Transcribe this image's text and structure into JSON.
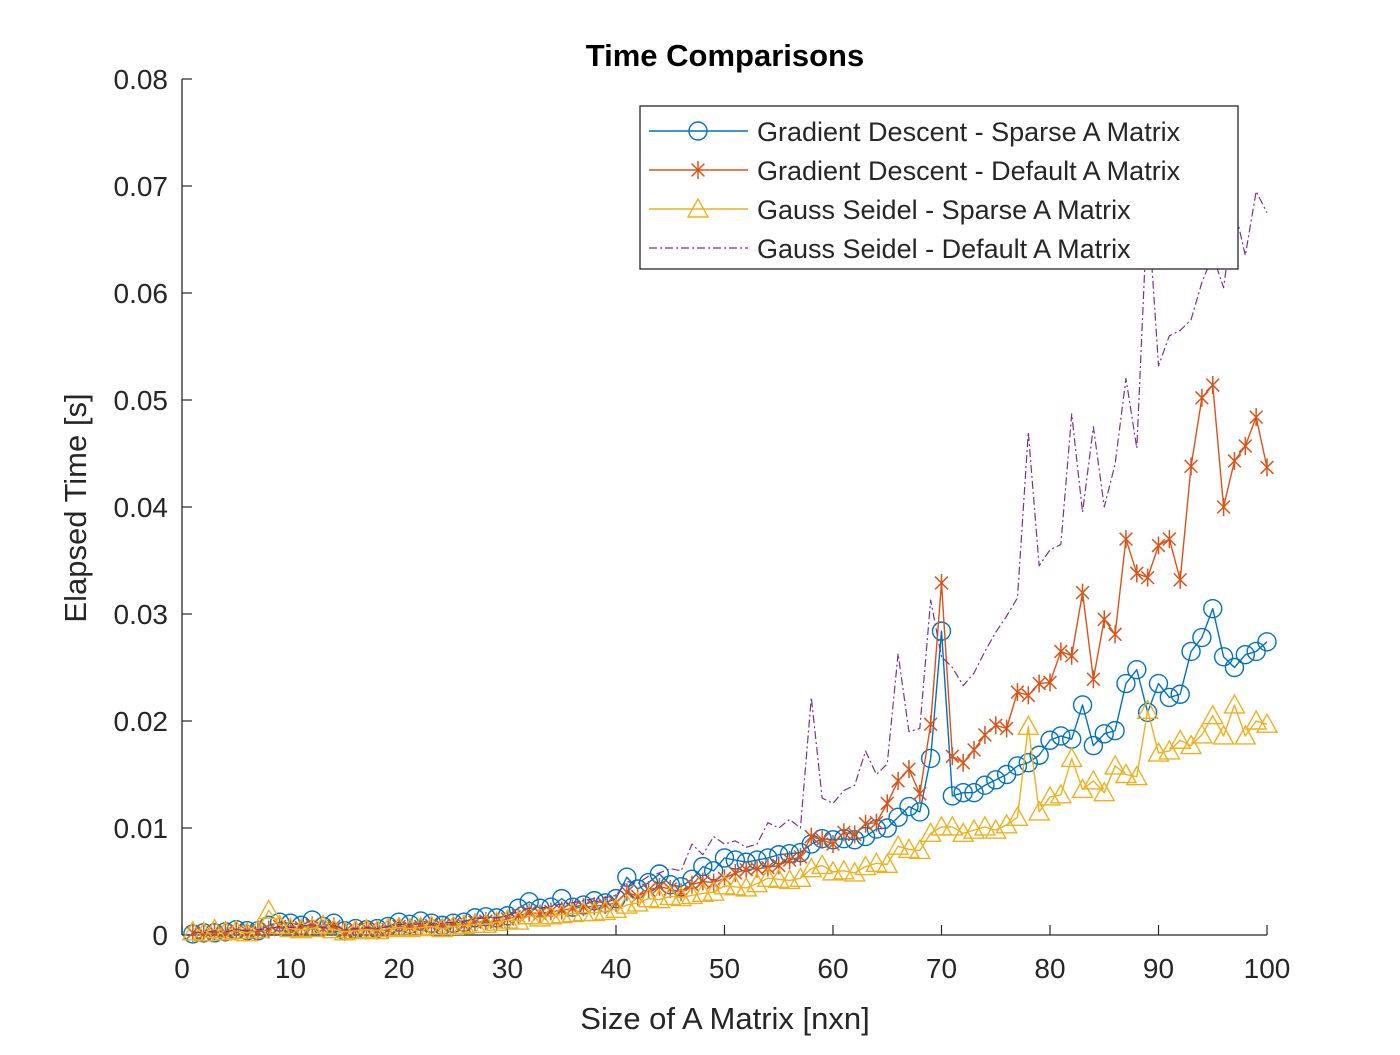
{
  "chart_data": {
    "type": "line",
    "title": "Time Comparisons",
    "xlabel": "Size of A Matrix [nxn]",
    "ylabel": "Elapsed Time [s]",
    "xlim": [
      0,
      100
    ],
    "ylim": [
      0,
      0.08
    ],
    "x_ticks": [
      0,
      10,
      20,
      30,
      40,
      50,
      60,
      70,
      80,
      90,
      100
    ],
    "y_ticks": [
      0,
      0.01,
      0.02,
      0.03,
      0.04,
      0.05,
      0.06,
      0.07,
      0.08
    ],
    "x_tick_labels": [
      "0",
      "10",
      "20",
      "30",
      "40",
      "50",
      "60",
      "70",
      "80",
      "90",
      "100"
    ],
    "y_tick_labels": [
      "0",
      "0.01",
      "0.02",
      "0.03",
      "0.04",
      "0.05",
      "0.06",
      "0.07",
      "0.08"
    ],
    "grid": false,
    "legend_position": "top-right",
    "x": [
      1,
      2,
      3,
      4,
      5,
      6,
      7,
      8,
      9,
      10,
      11,
      12,
      13,
      14,
      15,
      16,
      17,
      18,
      19,
      20,
      21,
      22,
      23,
      24,
      25,
      26,
      27,
      28,
      29,
      30,
      31,
      32,
      33,
      34,
      35,
      36,
      37,
      38,
      39,
      40,
      41,
      42,
      43,
      44,
      45,
      46,
      47,
      48,
      49,
      50,
      51,
      52,
      53,
      54,
      55,
      56,
      57,
      58,
      59,
      60,
      61,
      62,
      63,
      64,
      65,
      66,
      67,
      68,
      69,
      70,
      71,
      72,
      73,
      74,
      75,
      76,
      77,
      78,
      79,
      80,
      81,
      82,
      83,
      84,
      85,
      86,
      87,
      88,
      89,
      90,
      91,
      92,
      93,
      94,
      95,
      96,
      97,
      98,
      99,
      100
    ],
    "series": [
      {
        "name": "Gradient Descent - Sparse A Matrix",
        "color": "#0072BD",
        "marker": "circle",
        "line_style": "solid",
        "values": [
          0.0001,
          0.0002,
          0.0002,
          0.0003,
          0.0005,
          0.0004,
          0.0004,
          0.0009,
          0.0012,
          0.0011,
          0.0009,
          0.0014,
          0.0008,
          0.0011,
          0.0004,
          0.0006,
          0.0005,
          0.0006,
          0.0008,
          0.0012,
          0.001,
          0.0013,
          0.0011,
          0.0009,
          0.0011,
          0.0012,
          0.0016,
          0.0017,
          0.0016,
          0.0018,
          0.0025,
          0.0031,
          0.0025,
          0.0026,
          0.0034,
          0.0026,
          0.0028,
          0.0032,
          0.003,
          0.0034,
          0.0054,
          0.0043,
          0.0049,
          0.0057,
          0.0047,
          0.0045,
          0.0052,
          0.0064,
          0.006,
          0.0072,
          0.007,
          0.0068,
          0.007,
          0.0072,
          0.0075,
          0.0076,
          0.0077,
          0.0085,
          0.009,
          0.0089,
          0.009,
          0.0089,
          0.0092,
          0.0099,
          0.01,
          0.011,
          0.012,
          0.0115,
          0.0165,
          0.0284,
          0.013,
          0.0133,
          0.0133,
          0.014,
          0.0145,
          0.015,
          0.0158,
          0.0161,
          0.0168,
          0.0182,
          0.0186,
          0.0183,
          0.0215,
          0.0177,
          0.0188,
          0.0191,
          0.0235,
          0.0248,
          0.0208,
          0.0235,
          0.0222,
          0.0225,
          0.0265,
          0.0278,
          0.0305,
          0.026,
          0.025,
          0.0262,
          0.0265,
          0.0274
        ]
      },
      {
        "name": "Gradient Descent - Default A Matrix",
        "color": "#D95319",
        "marker": "asterisk",
        "line_style": "solid",
        "values": [
          0.0002,
          0.0001,
          0.0003,
          0.0002,
          0.0004,
          0.0003,
          0.0003,
          0.0005,
          0.0008,
          0.0006,
          0.0007,
          0.0009,
          0.0006,
          0.0008,
          0.0003,
          0.0005,
          0.0006,
          0.0004,
          0.0005,
          0.0008,
          0.0007,
          0.0008,
          0.0009,
          0.0008,
          0.001,
          0.0009,
          0.0012,
          0.0013,
          0.0012,
          0.0015,
          0.0018,
          0.0021,
          0.002,
          0.0022,
          0.0023,
          0.0025,
          0.0026,
          0.0027,
          0.0028,
          0.003,
          0.004,
          0.0036,
          0.0042,
          0.0045,
          0.0043,
          0.004,
          0.0047,
          0.005,
          0.0049,
          0.0053,
          0.0058,
          0.0061,
          0.0062,
          0.0063,
          0.0065,
          0.007,
          0.0073,
          0.0092,
          0.0089,
          0.0085,
          0.0096,
          0.0094,
          0.0104,
          0.0105,
          0.0123,
          0.0144,
          0.0155,
          0.0132,
          0.0197,
          0.0329,
          0.0167,
          0.0161,
          0.0173,
          0.0187,
          0.0196,
          0.0193,
          0.0227,
          0.0224,
          0.0235,
          0.0236,
          0.0265,
          0.0261,
          0.032,
          0.0239,
          0.0295,
          0.0281,
          0.037,
          0.0338,
          0.0334,
          0.0364,
          0.037,
          0.0332,
          0.0438,
          0.0502,
          0.0514,
          0.04,
          0.0443,
          0.0457,
          0.0484,
          0.0437
        ]
      },
      {
        "name": "Gauss Seidel - Sparse A Matrix",
        "color": "#EDB120",
        "marker": "triangle",
        "line_style": "solid",
        "values": [
          0.0003,
          0.0002,
          0.0005,
          0.0003,
          0.0004,
          0.0002,
          0.0005,
          0.0023,
          0.0009,
          0.0006,
          0.0005,
          0.0006,
          0.0009,
          0.0005,
          0.0003,
          0.0004,
          0.0005,
          0.0004,
          0.0006,
          0.0007,
          0.0006,
          0.0007,
          0.0008,
          0.0006,
          0.0008,
          0.0009,
          0.001,
          0.001,
          0.0012,
          0.0014,
          0.0013,
          0.0018,
          0.0016,
          0.0018,
          0.0019,
          0.002,
          0.0021,
          0.0021,
          0.0022,
          0.0024,
          0.0028,
          0.003,
          0.0034,
          0.0033,
          0.0036,
          0.0035,
          0.0037,
          0.0039,
          0.004,
          0.0046,
          0.0045,
          0.0044,
          0.0048,
          0.0053,
          0.0052,
          0.0051,
          0.0053,
          0.0062,
          0.0065,
          0.0059,
          0.006,
          0.0058,
          0.0064,
          0.0067,
          0.0066,
          0.0083,
          0.008,
          0.0079,
          0.0095,
          0.0101,
          0.0101,
          0.0095,
          0.0098,
          0.0101,
          0.0098,
          0.0103,
          0.011,
          0.0195,
          0.0115,
          0.0129,
          0.0131,
          0.0165,
          0.0136,
          0.0144,
          0.0133,
          0.0158,
          0.015,
          0.0148,
          0.021,
          0.017,
          0.0172,
          0.0182,
          0.0177,
          0.0187,
          0.0205,
          0.0186,
          0.0215,
          0.0186,
          0.02,
          0.0197
        ]
      },
      {
        "name": "Gauss Seidel - Default A Matrix",
        "color": "#7E2F8E",
        "marker": "none",
        "line_style": "dash-dot",
        "values": [
          0.0003,
          0.0002,
          0.0004,
          0.0003,
          0.0005,
          0.0004,
          0.0005,
          0.0006,
          0.0008,
          0.0007,
          0.0008,
          0.001,
          0.0007,
          0.0009,
          0.0005,
          0.0006,
          0.0007,
          0.0006,
          0.0008,
          0.001,
          0.0009,
          0.0011,
          0.001,
          0.0011,
          0.0012,
          0.0013,
          0.0015,
          0.0016,
          0.0016,
          0.0018,
          0.0022,
          0.0025,
          0.0025,
          0.0027,
          0.0029,
          0.003,
          0.0032,
          0.0034,
          0.0035,
          0.0037,
          0.005,
          0.0048,
          0.0055,
          0.0058,
          0.0062,
          0.006,
          0.0085,
          0.0075,
          0.0092,
          0.0085,
          0.0088,
          0.0082,
          0.0085,
          0.0105,
          0.01,
          0.0108,
          0.01,
          0.0222,
          0.0128,
          0.0123,
          0.0135,
          0.014,
          0.0172,
          0.015,
          0.016,
          0.0263,
          0.019,
          0.0193,
          0.0313,
          0.026,
          0.025,
          0.0233,
          0.0245,
          0.0265,
          0.0283,
          0.0298,
          0.0315,
          0.047,
          0.0345,
          0.036,
          0.0365,
          0.0487,
          0.0395,
          0.0475,
          0.04,
          0.044,
          0.052,
          0.0455,
          0.0685,
          0.0532,
          0.056,
          0.0565,
          0.0575,
          0.061,
          0.0635,
          0.0605,
          0.068,
          0.0635,
          0.0695,
          0.0675
        ]
      }
    ]
  }
}
